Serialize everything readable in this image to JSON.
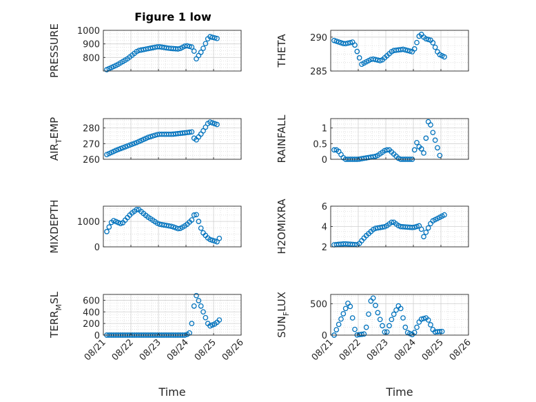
{
  "figure": {
    "title": "Figure 1 low"
  },
  "colors": {
    "marker": "#0072BD",
    "axis": "#262626",
    "grid": "#d9d9d9"
  },
  "chart_data": [
    {
      "type": "scatter",
      "ylabel": "PRESSURE",
      "xlabel": "",
      "grid": true,
      "xlim": [
        "08/21",
        "08/26"
      ],
      "ylim": [
        700,
        1000
      ],
      "yticks": [
        800,
        900,
        1000
      ],
      "xticks": [
        "08/21",
        "08/22",
        "08/23",
        "08/24",
        "08/25",
        "08/26"
      ],
      "x": [
        "08/21 03:00",
        "08/21 12:00",
        "08/21 21:00",
        "08/22 06:00",
        "08/22 15:00",
        "08/23 00:00",
        "08/23 09:00",
        "08/23 18:00",
        "08/24 00:00",
        "08/24 06:00",
        "08/24 09:00",
        "08/24 14:00",
        "08/24 20:00",
        "08/25 03:00"
      ],
      "y": [
        710,
        745,
        790,
        850,
        865,
        880,
        868,
        862,
        888,
        875,
        790,
        850,
        955,
        940
      ]
    },
    {
      "type": "scatter",
      "ylabel": "THETA",
      "xlabel": "",
      "grid": true,
      "xlim": [
        "08/21",
        "08/26"
      ],
      "ylim": [
        285,
        291
      ],
      "yticks": [
        285,
        290
      ],
      "xticks": [
        "08/21",
        "08/22",
        "08/23",
        "08/24",
        "08/25",
        "08/26"
      ],
      "x": [
        "08/21 03:00",
        "08/21 12:00",
        "08/21 20:00",
        "08/22 03:00",
        "08/22 12:00",
        "08/22 20:00",
        "08/23 06:00",
        "08/23 15:00",
        "08/24 00:00",
        "08/24 06:00",
        "08/24 10:00",
        "08/24 16:00",
        "08/24 22:00",
        "08/25 04:00"
      ],
      "y": [
        289.5,
        289.0,
        289.3,
        286.0,
        286.8,
        286.5,
        288.0,
        288.2,
        287.8,
        290.6,
        289.8,
        289.5,
        287.5,
        287.0
      ]
    },
    {
      "type": "scatter",
      "ylabel": "AIR_TEMP",
      "xlabel": "",
      "grid": true,
      "xlim": [
        "08/21",
        "08/26"
      ],
      "ylim": [
        260,
        286
      ],
      "yticks": [
        260,
        270,
        280
      ],
      "xticks": [
        "08/21",
        "08/22",
        "08/23",
        "08/24",
        "08/25",
        "08/26"
      ],
      "x": [
        "08/21 03:00",
        "08/21 12:00",
        "08/21 21:00",
        "08/22 06:00",
        "08/22 15:00",
        "08/23 00:00",
        "08/23 12:00",
        "08/24 00:00",
        "08/24 05:00",
        "08/24 08:00",
        "08/24 14:00",
        "08/24 20:00",
        "08/25 04:00"
      ],
      "y": [
        263,
        266,
        268.5,
        271,
        274,
        276,
        276,
        277,
        277.5,
        271.5,
        277,
        284,
        282
      ]
    },
    {
      "type": "scatter",
      "ylabel": "RAINFALL",
      "xlabel": "",
      "grid": true,
      "xlim": [
        "08/21",
        "08/26"
      ],
      "ylim": [
        0,
        1.3
      ],
      "yticks": [
        0,
        0.5,
        1
      ],
      "xticks": [
        "08/21",
        "08/22",
        "08/23",
        "08/24",
        "08/25",
        "08/26"
      ],
      "x": [
        "08/21 03:00",
        "08/21 06:00",
        "08/21 12:00",
        "08/22 00:00",
        "08/22 16:00",
        "08/23 00:00",
        "08/23 03:00",
        "08/23 12:00",
        "08/24 00:00",
        "08/24 02:00",
        "08/24 05:00",
        "08/24 08:00",
        "08/24 10:00",
        "08/24 12:00",
        "08/24 15:00",
        "08/25 00:00"
      ],
      "y": [
        0.3,
        0.3,
        0,
        0,
        0.1,
        0.3,
        0.3,
        0,
        0,
        0.6,
        0.4,
        0.3,
        0.1,
        1.25,
        1.1,
        0
      ]
    },
    {
      "type": "scatter",
      "ylabel": "MIXDEPTH",
      "xlabel": "",
      "grid": true,
      "xlim": [
        "08/21",
        "08/26"
      ],
      "ylim": [
        0,
        1600
      ],
      "yticks": [
        0,
        1000
      ],
      "xticks": [
        "08/21",
        "08/22",
        "08/23",
        "08/24",
        "08/25",
        "08/26"
      ],
      "x": [
        "08/21 03:00",
        "08/21 08:00",
        "08/21 16:00",
        "08/22 00:00",
        "08/22 06:00",
        "08/22 14:00",
        "08/23 00:00",
        "08/23 12:00",
        "08/23 18:00",
        "08/24 00:00",
        "08/24 06:00",
        "08/24 08:00",
        "08/24 14:00",
        "08/24 20:00",
        "08/25 03:00",
        "08/25 06:00"
      ],
      "y": [
        600,
        1050,
        900,
        1300,
        1500,
        1200,
        900,
        800,
        700,
        850,
        1100,
        1400,
        600,
        300,
        200,
        400
      ]
    },
    {
      "type": "scatter",
      "ylabel": "H2OMIXRA",
      "xlabel": "",
      "grid": true,
      "xlim": [
        "08/21",
        "08/26"
      ],
      "ylim": [
        2,
        6
      ],
      "yticks": [
        2,
        4,
        6
      ],
      "xticks": [
        "08/21",
        "08/22",
        "08/23",
        "08/24",
        "08/25",
        "08/26"
      ],
      "x": [
        "08/21 03:00",
        "08/21 12:00",
        "08/22 00:00",
        "08/22 06:00",
        "08/22 14:00",
        "08/23 00:00",
        "08/23 06:00",
        "08/23 12:00",
        "08/24 00:00",
        "08/24 06:00",
        "08/24 09:00",
        "08/24 16:00",
        "08/25 04:00"
      ],
      "y": [
        2.2,
        2.3,
        2.2,
        3.0,
        3.8,
        4.0,
        4.5,
        4.0,
        3.9,
        4.1,
        3.0,
        4.5,
        5.2
      ]
    },
    {
      "type": "scatter",
      "ylabel": "TERR_MSL",
      "xlabel": "Time",
      "grid": true,
      "xlim": [
        "08/21",
        "08/26"
      ],
      "ylim": [
        0,
        700
      ],
      "yticks": [
        0,
        200,
        400,
        600
      ],
      "xticks": [
        "08/21",
        "08/22",
        "08/23",
        "08/24",
        "08/25",
        "08/26"
      ],
      "x": [
        "08/21 03:00",
        "08/22 00:00",
        "08/23 00:00",
        "08/24 00:00",
        "08/24 04:00",
        "08/24 07:00",
        "08/24 09:00",
        "08/24 12:00",
        "08/24 16:00",
        "08/24 20:00",
        "08/25 02:00",
        "08/25 06:00"
      ],
      "y": [
        0,
        0,
        0,
        0,
        50,
        500,
        680,
        550,
        350,
        150,
        200,
        280
      ]
    },
    {
      "type": "scatter",
      "ylabel": "SUN_FLUX",
      "xlabel": "Time",
      "grid": true,
      "xlim": [
        "08/21",
        "08/26"
      ],
      "ylim": [
        0,
        650
      ],
      "yticks": [
        0,
        500
      ],
      "xticks": [
        "08/21",
        "08/22",
        "08/23",
        "08/24",
        "08/25",
        "08/26"
      ],
      "x": [
        "08/21 03:00",
        "08/21 10:00",
        "08/21 16:00",
        "08/21 22:00",
        "08/22 06:00",
        "08/22 12:00",
        "08/22 18:00",
        "08/23 00:00",
        "08/23 06:00",
        "08/23 12:00",
        "08/23 18:00",
        "08/24 00:00",
        "08/24 06:00",
        "08/24 12:00",
        "08/24 18:00",
        "08/25 02:00"
      ],
      "y": [
        0,
        300,
        550,
        0,
        20,
        650,
        300,
        0,
        300,
        500,
        50,
        0,
        250,
        280,
        50,
        60
      ]
    }
  ]
}
